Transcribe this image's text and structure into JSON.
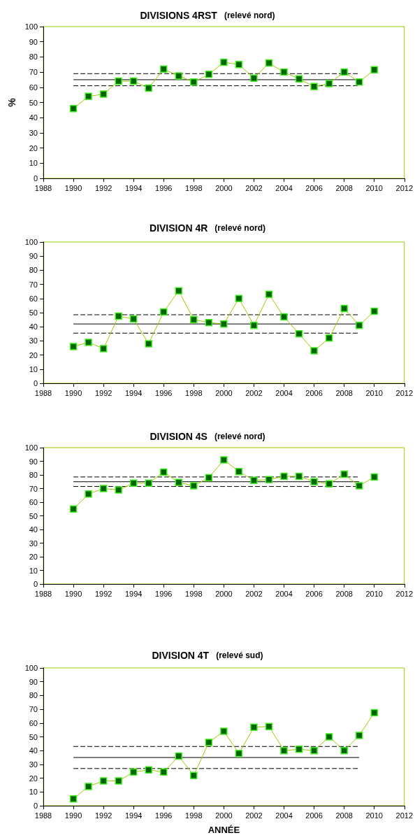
{
  "chart_data": [
    {
      "type": "line",
      "title": "DIVISIONS 4RST",
      "subtitle": "(relevé nord)",
      "ylabel": "%",
      "x": [
        1990,
        1991,
        1992,
        1993,
        1994,
        1995,
        1996,
        1997,
        1998,
        1999,
        2000,
        2001,
        2002,
        2003,
        2004,
        2005,
        2006,
        2007,
        2008,
        2009,
        2010
      ],
      "xlim": [
        1988,
        2012
      ],
      "xticks": [
        1988,
        1990,
        1992,
        1994,
        1996,
        1998,
        2000,
        2002,
        2004,
        2006,
        2008,
        2010,
        2012
      ],
      "ylim": [
        0,
        100
      ],
      "yticks": [
        0,
        10,
        20,
        30,
        40,
        50,
        60,
        70,
        80,
        90,
        100
      ],
      "series": [
        {
          "color": "#99cc00",
          "marker": "square",
          "values": [
            46,
            54,
            55.5,
            64,
            64,
            59.5,
            72,
            67.5,
            63.5,
            68.5,
            76.5,
            75,
            66,
            76,
            70,
            65.5,
            60.5,
            62.5,
            70,
            63.5,
            71.5
          ]
        }
      ],
      "ref_lines": [
        {
          "axis": "y",
          "value": 65,
          "color": "#000000",
          "line_style": "solid"
        },
        {
          "axis": "y",
          "value": 69,
          "color": "#000000",
          "line_style": "dashed"
        },
        {
          "axis": "y",
          "value": 61,
          "color": "#000000",
          "line_style": "dashed"
        }
      ]
    },
    {
      "type": "line",
      "title": "DIVISION 4R",
      "subtitle": "(relevé nord)",
      "x": [
        1990,
        1991,
        1992,
        1993,
        1994,
        1995,
        1996,
        1997,
        1998,
        1999,
        2000,
        2001,
        2002,
        2003,
        2004,
        2005,
        2006,
        2007,
        2008,
        2009,
        2010
      ],
      "xlim": [
        1988,
        2012
      ],
      "xticks": [
        1988,
        1990,
        1992,
        1994,
        1996,
        1998,
        2000,
        2002,
        2004,
        2006,
        2008,
        2010,
        2012
      ],
      "ylim": [
        0,
        100
      ],
      "yticks": [
        0,
        10,
        20,
        30,
        40,
        50,
        60,
        70,
        80,
        90,
        100
      ],
      "series": [
        {
          "color": "#99cc00",
          "marker": "square",
          "values": [
            26,
            29,
            24.5,
            47.5,
            45.5,
            28,
            50.5,
            65.5,
            45,
            43,
            42,
            60,
            41,
            63,
            47,
            35,
            23,
            32,
            53,
            41,
            51
          ]
        }
      ],
      "ref_lines": [
        {
          "axis": "y",
          "value": 42,
          "color": "#000000",
          "line_style": "solid"
        },
        {
          "axis": "y",
          "value": 48.5,
          "color": "#000000",
          "line_style": "dashed"
        },
        {
          "axis": "y",
          "value": 35.5,
          "color": "#000000",
          "line_style": "dashed"
        }
      ]
    },
    {
      "type": "line",
      "title": "DIVISION 4S",
      "subtitle": "(relevé nord)",
      "x": [
        1990,
        1991,
        1992,
        1993,
        1994,
        1995,
        1996,
        1997,
        1998,
        1999,
        2000,
        2001,
        2002,
        2003,
        2004,
        2005,
        2006,
        2007,
        2008,
        2009,
        2010
      ],
      "xlim": [
        1988,
        2012
      ],
      "xticks": [
        1988,
        1990,
        1992,
        1994,
        1996,
        1998,
        2000,
        2002,
        2004,
        2006,
        2008,
        2010,
        2012
      ],
      "ylim": [
        0,
        100
      ],
      "yticks": [
        0,
        10,
        20,
        30,
        40,
        50,
        60,
        70,
        80,
        90,
        100
      ],
      "series": [
        {
          "color": "#99cc00",
          "marker": "square",
          "values": [
            55,
            66,
            70,
            69,
            74,
            74,
            82,
            74.5,
            72,
            78,
            91,
            82.5,
            76,
            76.5,
            79,
            79,
            75,
            73.5,
            80.5,
            72,
            78.5
          ]
        }
      ],
      "ref_lines": [
        {
          "axis": "y",
          "value": 75,
          "color": "#000000",
          "line_style": "solid"
        },
        {
          "axis": "y",
          "value": 78.5,
          "color": "#000000",
          "line_style": "dashed"
        },
        {
          "axis": "y",
          "value": 71.5,
          "color": "#000000",
          "line_style": "dashed"
        }
      ]
    },
    {
      "type": "line",
      "title": "DIVISION 4T",
      "subtitle": "(relevé sud)",
      "xlabel": "ANNÉE",
      "x": [
        1990,
        1991,
        1992,
        1993,
        1994,
        1995,
        1996,
        1997,
        1998,
        1999,
        2000,
        2001,
        2002,
        2003,
        2004,
        2005,
        2006,
        2007,
        2008,
        2009,
        2010
      ],
      "xlim": [
        1988,
        2012
      ],
      "xticks": [
        1988,
        1990,
        1992,
        1994,
        1996,
        1998,
        2000,
        2002,
        2004,
        2006,
        2008,
        2010,
        2012
      ],
      "ylim": [
        0,
        100
      ],
      "yticks": [
        0,
        10,
        20,
        30,
        40,
        50,
        60,
        70,
        80,
        90,
        100
      ],
      "series": [
        {
          "color": "#99cc00",
          "marker": "square",
          "values": [
            5,
            14,
            18,
            18,
            24.5,
            26,
            24.5,
            36,
            22,
            46,
            54,
            38,
            57,
            57.5,
            40,
            41,
            40,
            50,
            40,
            51,
            67.5
          ]
        }
      ],
      "ref_lines": [
        {
          "axis": "y",
          "value": 35,
          "color": "#000000",
          "line_style": "solid"
        },
        {
          "axis": "y",
          "value": 43,
          "color": "#000000",
          "line_style": "dashed"
        },
        {
          "axis": "y",
          "value": 27,
          "color": "#000000",
          "line_style": "dashed"
        }
      ]
    }
  ]
}
